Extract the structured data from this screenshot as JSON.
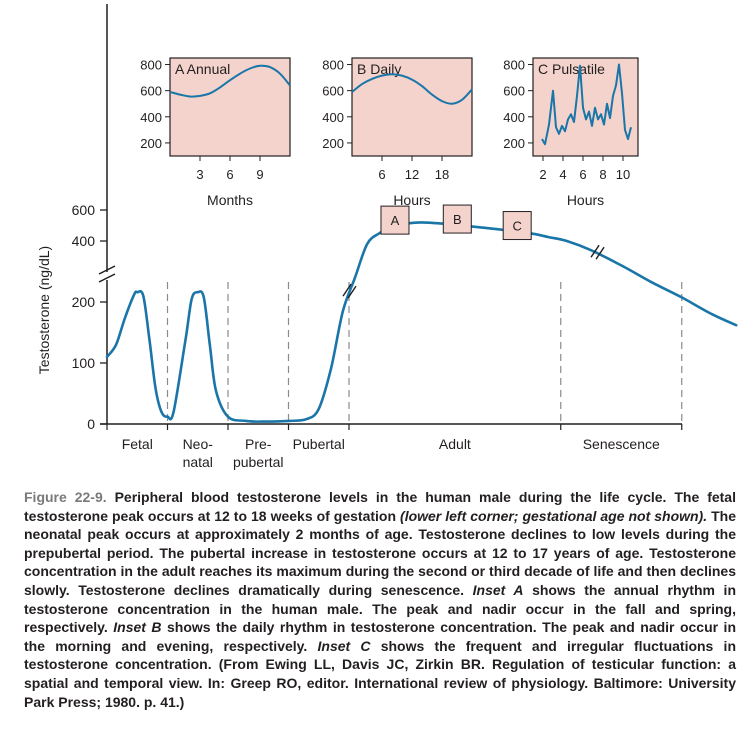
{
  "chart_data": [
    {
      "type": "line",
      "ylabel": "Testosterone (ng/dL)",
      "y_ticks_lower": [
        "0",
        "100",
        "200"
      ],
      "y_ticks_upper": [
        "400",
        "600"
      ],
      "axis_break": true,
      "phases": [
        "Fetal",
        "Neo-\nnatal",
        "Pre-\npubertal",
        "Pubertal",
        "Adult",
        "Senescence"
      ],
      "inset_markers": [
        "A",
        "B",
        "C"
      ],
      "series": [
        {
          "values": [
            [
              0.0,
              110
            ],
            [
              0.15,
              130
            ],
            [
              0.3,
              175
            ],
            [
              0.45,
              225
            ],
            [
              0.5,
              232
            ],
            [
              0.6,
              220
            ],
            [
              0.7,
              140
            ],
            [
              0.8,
              60
            ],
            [
              0.9,
              20
            ],
            [
              1.0,
              12
            ],
            [
              1.1,
              20
            ],
            [
              1.3,
              140
            ],
            [
              1.4,
              210
            ],
            [
              1.5,
              232
            ],
            [
              1.6,
              215
            ],
            [
              1.7,
              130
            ],
            [
              1.8,
              55
            ],
            [
              2.0,
              12
            ],
            [
              2.3,
              5
            ],
            [
              2.6,
              4
            ],
            [
              3.0,
              5
            ],
            [
              3.3,
              8
            ],
            [
              3.5,
              25
            ],
            [
              3.7,
              90
            ],
            [
              3.9,
              185
            ],
            [
              4.1,
              280
            ],
            [
              4.3,
              390
            ],
            [
              4.5,
              450
            ],
            [
              4.7,
              490
            ],
            [
              4.9,
              510
            ],
            [
              5.2,
              520
            ],
            [
              5.6,
              510
            ],
            [
              6.0,
              495
            ],
            [
              6.6,
              470
            ],
            [
              7.0,
              450
            ],
            [
              7.3,
              425
            ],
            [
              7.6,
              400
            ],
            [
              8.0,
              370
            ],
            [
              8.5,
              320
            ],
            [
              9.0,
              265
            ],
            [
              9.5,
              215
            ],
            [
              10.0,
              180
            ],
            [
              10.4,
              162
            ]
          ]
        }
      ]
    },
    {
      "type": "line",
      "title": "A Annual",
      "xlabel": "Months",
      "x_ticks": [
        "3",
        "6",
        "9"
      ],
      "y_ticks": [
        "200",
        "400",
        "600",
        "800"
      ],
      "xlim": [
        0,
        12
      ],
      "ylim": [
        100,
        850
      ],
      "series": [
        {
          "x": [
            0,
            1,
            2,
            3,
            4,
            5,
            6,
            7,
            8,
            9,
            10,
            11,
            12
          ],
          "values": [
            590,
            570,
            555,
            560,
            580,
            625,
            680,
            730,
            770,
            790,
            780,
            730,
            640
          ]
        }
      ]
    },
    {
      "type": "line",
      "title": "B Daily",
      "xlabel": "Hours",
      "x_ticks": [
        "6",
        "12",
        "18"
      ],
      "y_ticks": [
        "200",
        "400",
        "600",
        "800"
      ],
      "xlim": [
        0,
        24
      ],
      "ylim": [
        100,
        850
      ],
      "series": [
        {
          "x": [
            0,
            2,
            4,
            6,
            8,
            10,
            12,
            14,
            16,
            18,
            20,
            22,
            24
          ],
          "values": [
            590,
            650,
            690,
            715,
            725,
            715,
            685,
            635,
            570,
            520,
            500,
            530,
            610
          ]
        }
      ]
    },
    {
      "type": "line",
      "title": "C Pulsatile",
      "xlabel": "Hours",
      "x_ticks": [
        "2",
        "4",
        "6",
        "8",
        "10"
      ],
      "y_ticks": [
        "200",
        "400",
        "600",
        "800"
      ],
      "xlim": [
        1,
        11.5
      ],
      "ylim": [
        100,
        850
      ],
      "series": [
        {
          "x": [
            1.9,
            2.2,
            2.6,
            3.0,
            3.3,
            3.6,
            3.9,
            4.2,
            4.5,
            4.8,
            5.1,
            5.4,
            5.7,
            6.0,
            6.3,
            6.6,
            6.9,
            7.2,
            7.5,
            7.8,
            8.1,
            8.4,
            8.7,
            9.0,
            9.3,
            9.6,
            9.9,
            10.2,
            10.5,
            10.8
          ],
          "values": [
            230,
            190,
            340,
            600,
            320,
            270,
            330,
            290,
            380,
            420,
            360,
            560,
            790,
            470,
            380,
            440,
            330,
            470,
            380,
            420,
            340,
            500,
            390,
            560,
            640,
            800,
            580,
            300,
            230,
            320
          ]
        }
      ]
    }
  ],
  "caption": {
    "figure_number": "Figure 22-9.",
    "parts": [
      {
        "text": " Peripheral blood testosterone levels in the human male during the life cycle. The fetal testosterone peak occurs at 12 to 18 weeks of gestation ",
        "italic": false
      },
      {
        "text": "(lower left corner; gestational age not shown).",
        "italic": true
      },
      {
        "text": " The neonatal peak occurs at approximately 2 months of age. Testosterone declines to low levels during the prepubertal period. The pubertal increase in testosterone occurs at 12 to 17 years of age. Testosterone concentration in the adult reaches its maximum during the second or third decade of life and then declines slowly. Testosterone declines dramatically during senescence. ",
        "italic": false
      },
      {
        "text": "Inset A",
        "italic": true
      },
      {
        "text": " shows the annual rhythm in testosterone concentration in the human male. The peak and nadir occur in the fall and spring, respectively. ",
        "italic": false
      },
      {
        "text": "Inset B",
        "italic": true
      },
      {
        "text": " shows the daily rhythm in testosterone concentration. The peak and nadir occur in the morning and evening, respectively. ",
        "italic": false
      },
      {
        "text": "Inset C",
        "italic": true
      },
      {
        "text": " shows the frequent and irregular fluctuations in testosterone concentration. (From Ewing LL, Davis JC, Zirkin BR. Regulation of testicular function: a spatial and temporal view. In: Greep RO, editor. International review of physiology. Baltimore: University Park Press; 1980. p. 41.)",
        "italic": false
      }
    ]
  },
  "colors": {
    "curve": "#1a75a8",
    "inset_fill": "#f3d3cc",
    "axis": "#231f20",
    "phase_divider": "#8a8a8a",
    "caption_label": "#7a7a7a"
  }
}
